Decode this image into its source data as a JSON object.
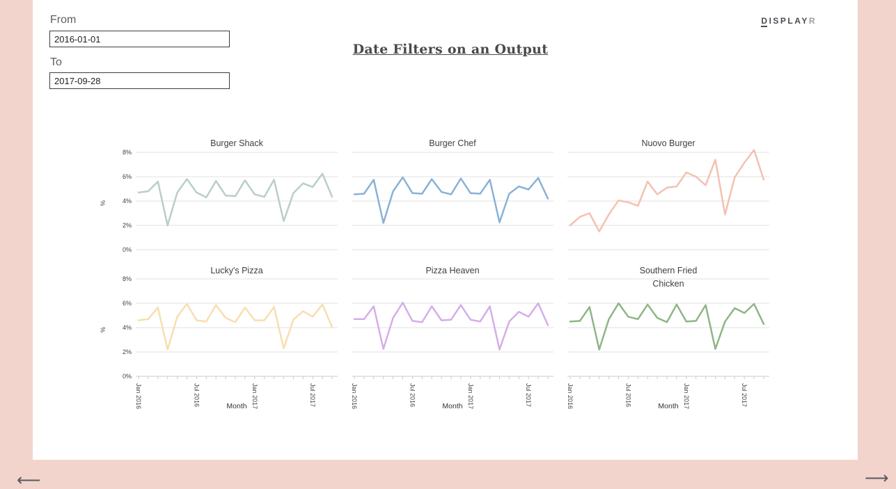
{
  "header": {
    "title": "Date Filters on an Output"
  },
  "logo": {
    "d": "D",
    "rest": "ISPLAY",
    "secondary": "R"
  },
  "filters": {
    "from_label": "From",
    "from_value": "2016-01-01",
    "to_label": "To",
    "to_value": "2017-09-28"
  },
  "nav": {
    "prev": "⟵",
    "next": "⟶"
  },
  "chart_data": {
    "type": "line",
    "layout": "small multiples, 2 rows x 3 columns, shared axes",
    "xlabel": "Month",
    "ylabel": "%",
    "ylim": [
      0,
      8
    ],
    "yticks": [
      "0%",
      "2%",
      "4%",
      "6%",
      "8%"
    ],
    "grid": true,
    "grid_color": "#e0e0e0",
    "axis_color": "#c9c9c9",
    "x": [
      "Jan 2016",
      "Feb 2016",
      "Mar 2016",
      "Apr 2016",
      "May 2016",
      "Jun 2016",
      "Jul 2016",
      "Aug 2016",
      "Sep 2016",
      "Oct 2016",
      "Nov 2016",
      "Dec 2016",
      "Jan 2017",
      "Feb 2017",
      "Mar 2017",
      "Apr 2017",
      "May 2017",
      "Jun 2017",
      "Jul 2017",
      "Aug 2017",
      "Sep 2017"
    ],
    "x_tick_indices": [
      0,
      6,
      12,
      18
    ],
    "series": [
      {
        "name": "Burger Shack",
        "color": "#b9cfc4",
        "values": [
          4.7,
          4.8,
          5.6,
          2.0,
          4.7,
          5.8,
          4.7,
          4.3,
          5.65,
          4.45,
          4.4,
          5.7,
          4.55,
          4.35,
          5.75,
          2.35,
          4.65,
          5.45,
          5.15,
          6.25,
          4.35
        ]
      },
      {
        "name": "Burger Chef",
        "color": "#89b1d8",
        "values": [
          4.55,
          4.6,
          5.75,
          2.2,
          4.8,
          5.95,
          4.65,
          4.6,
          5.8,
          4.75,
          4.55,
          5.85,
          4.65,
          4.6,
          5.75,
          2.25,
          4.6,
          5.2,
          4.95,
          5.9,
          4.2
        ]
      },
      {
        "name": "Nuovo Burger",
        "color": "#f3c1b2",
        "values": [
          2.0,
          2.7,
          3.0,
          1.5,
          2.9,
          4.05,
          3.9,
          3.6,
          5.6,
          4.55,
          5.1,
          5.2,
          6.35,
          6.0,
          5.3,
          7.4,
          2.9,
          5.95,
          7.15,
          8.2,
          5.75
        ]
      },
      {
        "name": "Lucky's Pizza",
        "color": "#f8deb0",
        "values": [
          4.6,
          4.7,
          5.65,
          2.2,
          4.9,
          5.95,
          4.6,
          4.5,
          5.85,
          4.8,
          4.45,
          5.65,
          4.6,
          4.6,
          5.7,
          2.3,
          4.65,
          5.35,
          4.9,
          5.9,
          4.05
        ]
      },
      {
        "name": "Pizza Heaven",
        "color": "#d5ade9",
        "values": [
          4.7,
          4.7,
          5.75,
          2.25,
          4.8,
          6.05,
          4.55,
          4.45,
          5.75,
          4.6,
          4.65,
          5.85,
          4.65,
          4.5,
          5.75,
          2.2,
          4.5,
          5.3,
          4.9,
          6.0,
          4.2
        ]
      },
      {
        "name": "Southern Fried Chicken",
        "color": "#8fb584",
        "values": [
          4.5,
          4.55,
          5.7,
          2.2,
          4.7,
          6.0,
          4.9,
          4.7,
          5.9,
          4.8,
          4.45,
          5.9,
          4.5,
          4.55,
          5.85,
          2.25,
          4.5,
          5.6,
          5.2,
          5.95,
          4.3
        ]
      }
    ]
  }
}
